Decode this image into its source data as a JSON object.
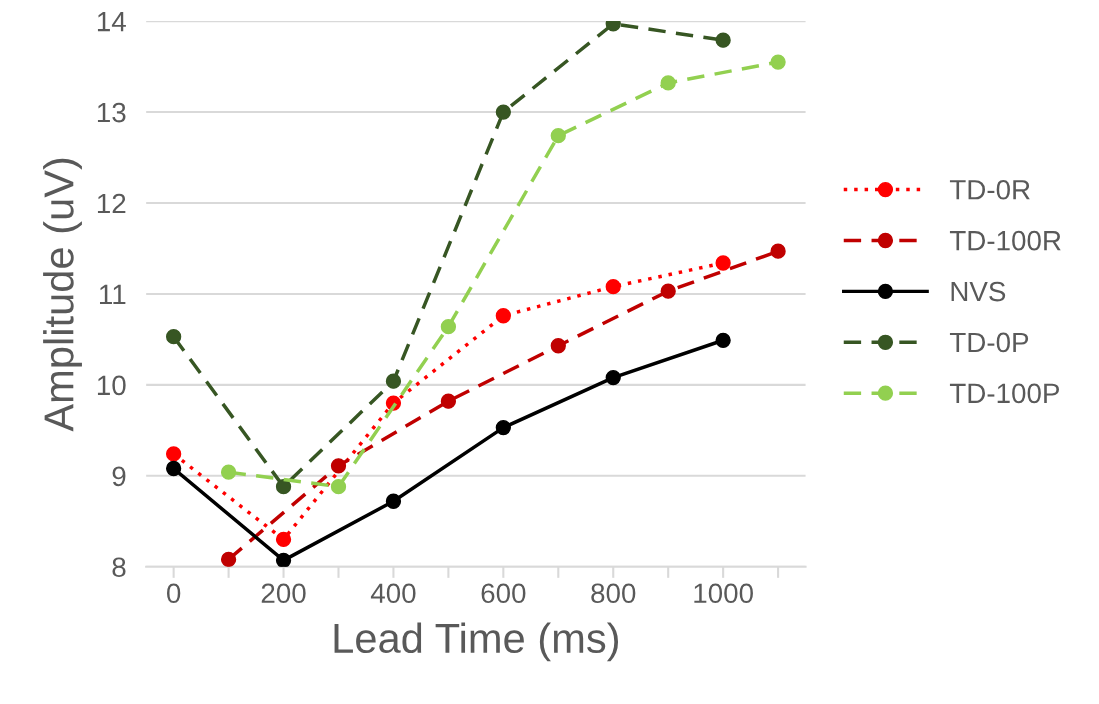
{
  "chart_data": {
    "type": "line",
    "xlabel": "Lead Time (ms)",
    "ylabel": "Amplitude (uV)",
    "xlim": [
      -50,
      1150
    ],
    "xticks": [
      0,
      {
        "value": 100,
        "label": null
      },
      200,
      {
        "value": 300,
        "label": null
      },
      400,
      {
        "value": 500,
        "label": null
      },
      600,
      {
        "value": 700,
        "label": null
      },
      800,
      {
        "value": 900,
        "label": null
      },
      1000,
      {
        "value": 1100,
        "label": null
      }
    ],
    "ylim": [
      8,
      14
    ],
    "yticks": [
      8,
      9,
      10,
      11,
      12,
      13,
      14
    ],
    "grid": "y",
    "legend": "right",
    "marker": "circle",
    "series": [
      {
        "name": "TD-0R",
        "color": "#ff0000",
        "line_style": "dotted",
        "x": [
          0,
          200,
          400,
          600,
          800,
          1000
        ],
        "values": [
          9.24,
          8.3,
          9.8,
          10.76,
          11.08,
          11.34
        ]
      },
      {
        "name": "TD-100R",
        "color": "#c00000",
        "line_style": "dashed",
        "x": [
          100,
          300,
          500,
          700,
          900,
          1100
        ],
        "values": [
          8.08,
          9.11,
          9.82,
          10.43,
          11.03,
          11.47
        ]
      },
      {
        "name": "NVS",
        "color": "#000000",
        "line_style": "solid",
        "x": [
          0,
          200,
          400,
          600,
          800,
          1000
        ],
        "values": [
          9.08,
          8.07,
          8.72,
          9.53,
          10.08,
          10.49
        ]
      },
      {
        "name": "TD-0P",
        "color": "#375623",
        "line_style": "dashed",
        "x": [
          0,
          200,
          400,
          600,
          800,
          1000
        ],
        "values": [
          10.53,
          8.88,
          10.04,
          13.0,
          13.97,
          13.79
        ]
      },
      {
        "name": "TD-100P",
        "color": "#92d050",
        "line_style": "dashed",
        "x": [
          100,
          300,
          500,
          700,
          900,
          1100
        ],
        "values": [
          9.04,
          8.88,
          10.64,
          12.74,
          13.32,
          13.55
        ]
      }
    ]
  }
}
